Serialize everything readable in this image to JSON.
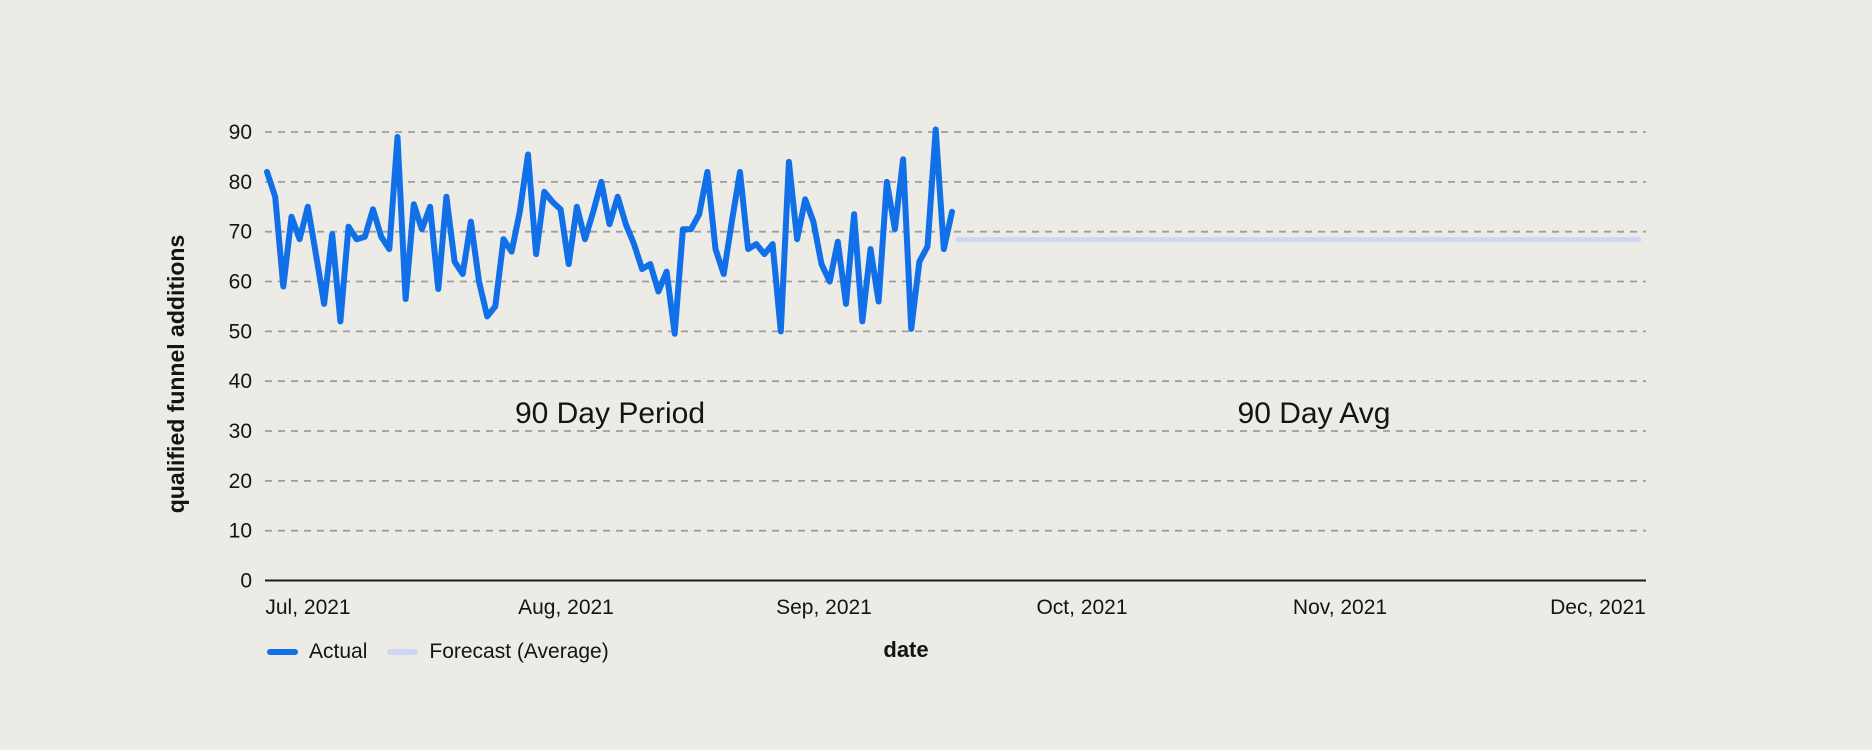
{
  "chart_data": {
    "type": "line",
    "title": "",
    "xlabel": "date",
    "ylabel": "qualified funnel additions",
    "ylim": [
      0,
      93
    ],
    "yticks": [
      0,
      10,
      20,
      30,
      40,
      50,
      60,
      70,
      80,
      90
    ],
    "xtick_labels": [
      "Jul, 2021",
      "Aug, 2021",
      "Sep, 2021",
      "Oct, 2021",
      "Nov, 2021",
      "Dec, 2021"
    ],
    "grid": "horizontal dashed",
    "legend_position": "bottom left",
    "annotations": [
      {
        "id": "period",
        "text": "90 Day Period"
      },
      {
        "id": "avg",
        "text": "90 Day Avg"
      }
    ],
    "series": [
      {
        "name": "Actual",
        "type": "line",
        "color": "#1170E8",
        "values": [
          82,
          77,
          59,
          73,
          68.5,
          75,
          65.5,
          55.5,
          69.5,
          52,
          71,
          68.5,
          69,
          74.5,
          69,
          66.5,
          89,
          56.5,
          75.5,
          70.5,
          75,
          58.5,
          77,
          64,
          61.5,
          72,
          60,
          53,
          55,
          68.5,
          66,
          74,
          85.5,
          65.5,
          78,
          76,
          74.5,
          63.5,
          75,
          68.5,
          74,
          80,
          71.5,
          77,
          71.5,
          67.5,
          62.5,
          63.5,
          58,
          62,
          49.5,
          70.5,
          70.5,
          73.5,
          82,
          66.5,
          61.5,
          72,
          82,
          66.5,
          67.5,
          65.5,
          67.5,
          50,
          84,
          68.5,
          76.5,
          72,
          63.5,
          60,
          68,
          55.5,
          73.5,
          52,
          66.5,
          56,
          80,
          70.5,
          84.5,
          50.5,
          64,
          67,
          90.5,
          66.5,
          74
        ]
      },
      {
        "name": "Forecast (Average)",
        "type": "flat-line",
        "color": "#CFD6F4",
        "average_value": 68.4
      }
    ]
  },
  "legend": {
    "items": [
      {
        "label": "Actual",
        "color": "#1170E8"
      },
      {
        "label": "Forecast (Average)",
        "color": "#CFD6F4"
      }
    ]
  },
  "colors": {
    "background": "#ECEBE6",
    "grid": "#95959D",
    "axis": "#1C1C1C",
    "text": "#141414"
  }
}
